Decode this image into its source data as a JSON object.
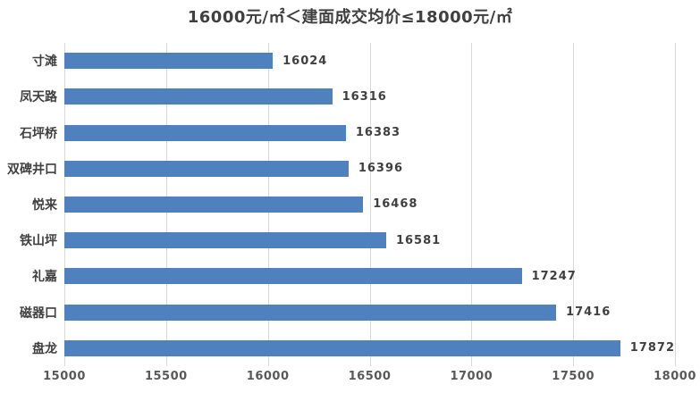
{
  "title": "16000元/㎡＜建面成交均价≤18000元/㎡",
  "colors": {
    "bar": "#4E81BD",
    "gridline": "#D9D9D9",
    "title_text": "#404040",
    "value_label_text": "#404040",
    "category_label_text": "#404040",
    "tick_label_text": "#595959",
    "background": "#FFFFFF"
  },
  "chart_data": {
    "type": "bar",
    "orientation": "horizontal",
    "title": "16000元/㎡＜建面成交均价≤18000元/㎡",
    "xlabel": "",
    "ylabel": "",
    "categories": [
      "寸滩",
      "凤天路",
      "石坪桥",
      "双碑井口",
      "悦来",
      "铁山坪",
      "礼嘉",
      "磁器口",
      "盘龙"
    ],
    "values": [
      16024,
      16316,
      16383,
      16396,
      16468,
      16581,
      17247,
      17416,
      17872
    ],
    "data_labels": [
      "16024",
      "16316",
      "16383",
      "16396",
      "16468",
      "16581",
      "17247",
      "17416",
      "17872"
    ],
    "xlim": [
      15000,
      18000
    ],
    "x_ticks": [
      "15000",
      "15500",
      "16000",
      "16500",
      "17000",
      "17500",
      "18000"
    ],
    "x_tick_values": [
      15000,
      15500,
      16000,
      16500,
      17000,
      17500,
      18000
    ],
    "grid": true,
    "legend": false
  }
}
